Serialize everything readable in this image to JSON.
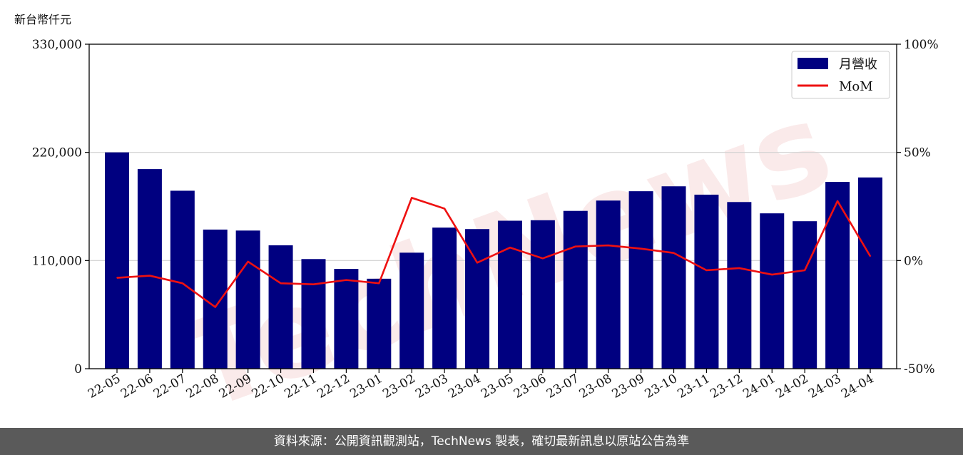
{
  "chart_data": {
    "type": "bar",
    "unit_label": "新台幣仟元",
    "categories": [
      "22-05",
      "22-06",
      "22-07",
      "22-08",
      "22-09",
      "22-10",
      "22-11",
      "22-12",
      "23-01",
      "23-02",
      "23-03",
      "23-04",
      "23-05",
      "23-06",
      "23-07",
      "23-08",
      "23-09",
      "23-10",
      "23-11",
      "23-12",
      "24-01",
      "24-02",
      "24-03",
      "24-04"
    ],
    "series": [
      {
        "name": "月營收",
        "type": "bar",
        "axis": "left",
        "color": "#000080",
        "values": [
          220000,
          203000,
          181000,
          141500,
          140500,
          125500,
          111500,
          101500,
          91500,
          118000,
          143500,
          142000,
          150500,
          151000,
          160500,
          171000,
          180500,
          185500,
          177000,
          169500,
          158000,
          150000,
          190000,
          194500
        ]
      },
      {
        "name": "MoM",
        "type": "line",
        "axis": "right",
        "color": "#ee1111",
        "values": [
          -8,
          -7,
          -10.5,
          -21.5,
          -0.5,
          -10.5,
          -11,
          -9,
          -10.5,
          29,
          24,
          -1,
          6,
          1,
          6.5,
          7,
          5.5,
          3.5,
          -4.5,
          -3.5,
          -6.5,
          -4.5,
          27.5,
          2
        ]
      }
    ],
    "yleft": {
      "range": [
        0,
        330000
      ],
      "ticks": [
        "0",
        "110,000",
        "220,000",
        "330,000"
      ],
      "tick_values": [
        0,
        110000,
        220000,
        330000
      ]
    },
    "yright": {
      "range": [
        -50,
        100
      ],
      "ticks": [
        "-50%",
        "0%",
        "50%",
        "100%"
      ],
      "tick_values": [
        -50,
        0,
        50,
        100
      ]
    },
    "grid": "horizontal",
    "legend_position": "top-right"
  },
  "watermark": "TechNews",
  "footer": "資料來源：公開資訊觀測站，TechNews 製表，確切最新訊息以原站公告為準"
}
